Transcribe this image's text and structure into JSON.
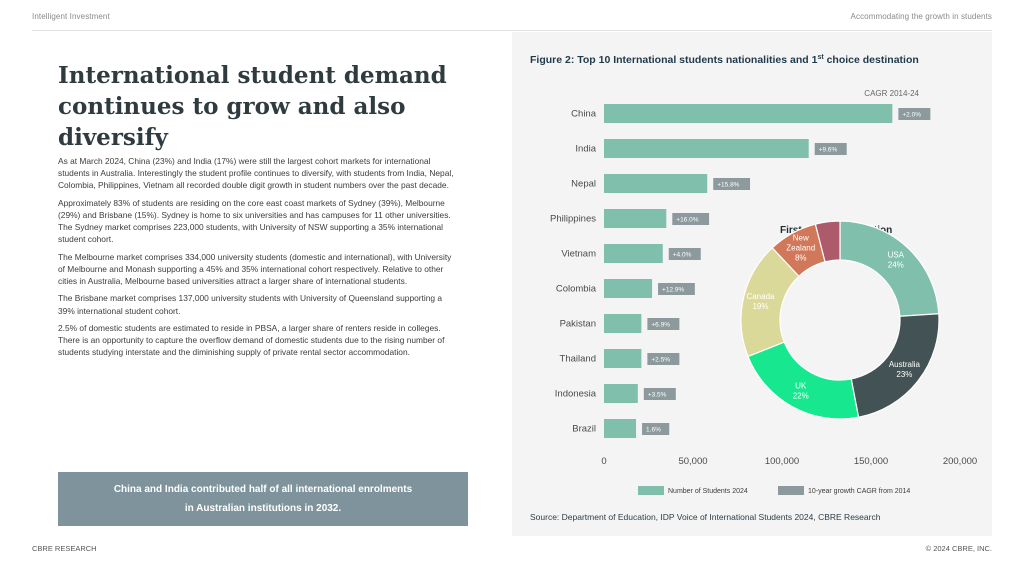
{
  "header": {
    "left": "Intelligent Investment",
    "right": "Accommodating the growth in students"
  },
  "footer": {
    "left": "CBRE RESEARCH",
    "right": "© 2024 CBRE, INC."
  },
  "title": "International student demand continues to grow and also diversify",
  "paragraphs": [
    "As at March 2024, China (23%) and India (17%) were still the largest cohort markets for international students in Australia. Interestingly the student profile continues to diversify, with students from India, Nepal, Colombia, Philippines, Vietnam all recorded double digit growth in student numbers over the past decade.",
    "Approximately 83% of students are residing on the core east coast markets of Sydney (39%), Melbourne (29%) and Brisbane (15%). Sydney is home to six universities and has campuses for 11 other universities. The Sydney market comprises 223,000 students, with University of NSW supporting a 35% international student cohort.",
    "The Melbourne market comprises 334,000 university students (domestic and international), with University of Melbourne and Monash supporting a 45% and 35% international cohort respectively. Relative to other cities in Australia, Melbourne based universities attract a larger share of international students.",
    "The Brisbane market comprises 137,000 university students with University of Queensland supporting a 39% international student cohort.",
    "2.5% of domestic students are estimated to reside in PBSA, a larger share of renters reside in colleges. There is an opportunity to capture the overflow demand of domestic students due to the rising number of students studying interstate and the diminishing supply of private rental sector accommodation."
  ],
  "callout": "China and India contributed half of all international enrolments in Australian institutions in 2032.",
  "chart_data": [
    {
      "type": "bar",
      "orientation": "horizontal",
      "title": "Figure 2: Top 10 International students nationalities and 1",
      "title_sup": "st",
      "title_end": " choice destination",
      "categories": [
        "China",
        "India",
        "Nepal",
        "Philippines",
        "Vietnam",
        "Colombia",
        "Pakistan",
        "Thailand",
        "Indonesia",
        "Brazil"
      ],
      "values": [
        162000,
        115000,
        58000,
        35000,
        33000,
        27000,
        21000,
        21000,
        19000,
        18000
      ],
      "cagr_labels": [
        "+2.0%",
        "+9.6%",
        "+15.8%",
        "+16.0%",
        "+4.0%",
        "+12.9%",
        "+6.9%",
        "+2.5%",
        "+3.5%",
        "1.6%"
      ],
      "cagr_heading": "CAGR 2014-24",
      "xlim": [
        0,
        200000
      ],
      "xticks": [
        "0",
        "50,000",
        "100,000",
        "150,000",
        "200,000"
      ],
      "xtick_values": [
        0,
        50000,
        100000,
        150000,
        200000
      ],
      "legend": [
        {
          "label": "Number of Students 2024",
          "color": "#80bfac"
        },
        {
          "label": "10-year growth CAGR from 2014",
          "color": "#8c9a9d"
        }
      ]
    },
    {
      "type": "pie",
      "title": "First choice destination",
      "slices": [
        {
          "name": "USA",
          "value": 24,
          "label": "24%",
          "color": "#80bfac"
        },
        {
          "name": "Australia",
          "value": 23,
          "label": "23%",
          "color": "#435254"
        },
        {
          "name": "UK",
          "value": 22,
          "label": "22%",
          "color": "#17e88f"
        },
        {
          "name": "Canada",
          "value": 19,
          "label": "19%",
          "color": "#dbd99a"
        },
        {
          "name": "New Zealand",
          "value": 8,
          "label": "8%",
          "color": "#d2785a"
        },
        {
          "name": "Other",
          "value": 4,
          "label": "",
          "color": "#ad5a6a"
        }
      ],
      "lines": {
        "USA": [
          "USA",
          "24%"
        ],
        "Australia": [
          "Australia",
          "23%"
        ],
        "UK": [
          "UK",
          "22%"
        ],
        "Canada": [
          "Canada",
          "19%"
        ],
        "New Zealand": [
          "New",
          "Zealand",
          "8%"
        ]
      }
    }
  ],
  "source": "Source: Department of Education, IDP Voice of International Students 2024, CBRE Research",
  "colors": {
    "bar": "#80bfac",
    "cagr": "#8c9a9d",
    "callout": "#7e939c",
    "panel": "#f4f4f4"
  }
}
